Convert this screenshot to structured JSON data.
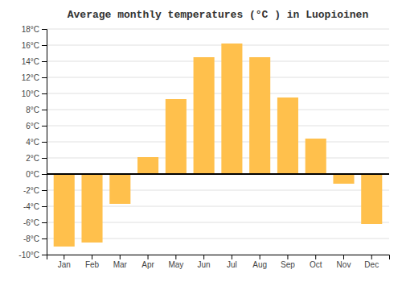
{
  "chart_data": {
    "type": "bar",
    "title": "Average monthly temperatures (°C ) in Luopioinen",
    "categories": [
      "Jan",
      "Feb",
      "Mar",
      "Apr",
      "May",
      "Jun",
      "Jul",
      "Aug",
      "Sep",
      "Oct",
      "Nov",
      "Dec"
    ],
    "values": [
      -9.0,
      -8.5,
      -3.7,
      2.1,
      9.3,
      14.5,
      16.2,
      14.5,
      9.5,
      4.4,
      -1.2,
      -6.2
    ],
    "color": "#FFC04C",
    "ylim": [
      -10,
      18
    ],
    "yticks": [
      {
        "value": -10,
        "label": "-10°C"
      },
      {
        "value": -8,
        "label": "-8°C"
      },
      {
        "value": -6,
        "label": "-6°C"
      },
      {
        "value": -4,
        "label": "-4°C"
      },
      {
        "value": -2,
        "label": "-2°C"
      },
      {
        "value": 0,
        "label": "0°C"
      },
      {
        "value": 2,
        "label": "2°C"
      },
      {
        "value": 4,
        "label": "4°C"
      },
      {
        "value": 6,
        "label": "6°C"
      },
      {
        "value": 8,
        "label": "8°C"
      },
      {
        "value": 10,
        "label": "10°C"
      },
      {
        "value": 12,
        "label": "12°C"
      },
      {
        "value": 14,
        "label": "14°C"
      },
      {
        "value": 16,
        "label": "16°C"
      },
      {
        "value": 18,
        "label": "18°C"
      }
    ],
    "grid": true
  }
}
